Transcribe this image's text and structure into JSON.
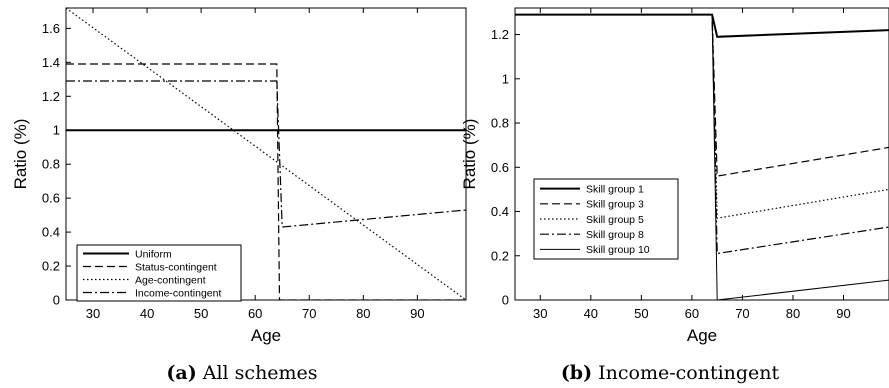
{
  "chart_data": [
    {
      "type": "line",
      "caption_label": "(a)",
      "caption_text": "All schemes",
      "xlabel": "Age",
      "ylabel": "Ratio (%)",
      "xlim": [
        25,
        99
      ],
      "ylim": [
        0,
        1.72
      ],
      "xticks": [
        "30",
        "40",
        "50",
        "60",
        "70",
        "80",
        "90"
      ],
      "yticks": [
        "0",
        "0.2",
        "0.4",
        "0.6",
        "0.8",
        "1",
        "1.2",
        "1.4",
        "1.6"
      ],
      "legend_position": "bottom-left",
      "series": [
        {
          "name": "Uniform",
          "dash": "",
          "width": 2,
          "points": [
            [
              25,
              1.0
            ],
            [
              99,
              1.0
            ]
          ]
        },
        {
          "name": "Status-contingent",
          "dash": "8,4",
          "width": 1.2,
          "points": [
            [
              25,
              1.39
            ],
            [
              64,
              1.39
            ],
            [
              64.5,
              0
            ],
            [
              99,
              0
            ]
          ]
        },
        {
          "name": "Age-contingent",
          "dash": "1.5,2.5",
          "width": 1.2,
          "points": [
            [
              25,
              1.72
            ],
            [
              99,
              0
            ]
          ]
        },
        {
          "name": "Income-contingent",
          "dash": "9,3,2,3",
          "width": 1.2,
          "points": [
            [
              25,
              1.29
            ],
            [
              64,
              1.29
            ],
            [
              65,
              0.43
            ],
            [
              99,
              0.53
            ]
          ]
        }
      ]
    },
    {
      "type": "line",
      "caption_label": "(b)",
      "caption_text": "Income-contingent",
      "xlabel": "Age",
      "ylabel": "Ratio (%)",
      "xlim": [
        25,
        99
      ],
      "ylim": [
        0,
        1.32
      ],
      "xticks": [
        "30",
        "40",
        "50",
        "60",
        "70",
        "80",
        "90"
      ],
      "yticks": [
        "0",
        "0.2",
        "0.4",
        "0.6",
        "0.8",
        "1",
        "1.2"
      ],
      "legend_position": "middle-left",
      "series": [
        {
          "name": "Skill group 1",
          "dash": "",
          "width": 2,
          "points": [
            [
              25,
              1.29
            ],
            [
              64,
              1.29
            ],
            [
              65,
              1.19
            ],
            [
              99,
              1.22
            ]
          ]
        },
        {
          "name": "Skill group 3",
          "dash": "8,4",
          "width": 1.2,
          "points": [
            [
              25,
              1.29
            ],
            [
              64,
              1.29
            ],
            [
              65,
              0.56
            ],
            [
              99,
              0.69
            ]
          ]
        },
        {
          "name": "Skill group 5",
          "dash": "1.5,2.5",
          "width": 1.2,
          "points": [
            [
              25,
              1.29
            ],
            [
              64,
              1.29
            ],
            [
              65,
              0.37
            ],
            [
              99,
              0.5
            ]
          ]
        },
        {
          "name": "Skill group 8",
          "dash": "9,3,2,3",
          "width": 1.2,
          "points": [
            [
              25,
              1.29
            ],
            [
              64,
              1.29
            ],
            [
              65,
              0.21
            ],
            [
              99,
              0.33
            ]
          ]
        },
        {
          "name": "Skill group 10",
          "dash": "",
          "width": 1,
          "points": [
            [
              25,
              1.29
            ],
            [
              64,
              1.29
            ],
            [
              65,
              0.0
            ],
            [
              99,
              0.09
            ]
          ]
        }
      ]
    }
  ]
}
